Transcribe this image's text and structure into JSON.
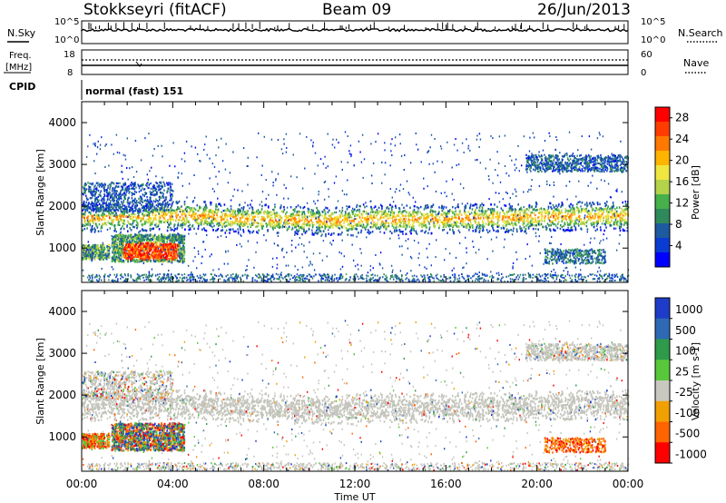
{
  "header": {
    "station": "Stokkseyri (fitACF)",
    "beam": "Beam 09",
    "date": "26/Jun/2013"
  },
  "side_labels": {
    "nsky": "N.Sky",
    "nsearch": "N.Search",
    "freq": "Freq.",
    "freq_unit": "[MHz]",
    "nave": "Nave",
    "cpid": "CPID"
  },
  "noise_panel": {
    "left_ticks": [
      "10^5",
      "10^0"
    ],
    "right_ticks": [
      "10^5",
      "10^0"
    ]
  },
  "freq_panel": {
    "left_ticks": [
      "18",
      "8"
    ],
    "right_ticks": [
      "60",
      "0"
    ]
  },
  "cpid_text": "normal (fast) 151",
  "chart_data": [
    {
      "type": "heatmap",
      "name": "power",
      "ylabel": "Slant Range [km]",
      "xlabel": "Time UT",
      "xlim_hours": [
        0,
        24
      ],
      "ylim": [
        180,
        4500
      ],
      "x_ticks": [
        "00:00",
        "04:00",
        "08:00",
        "12:00",
        "16:00",
        "20:00",
        "00:00"
      ],
      "y_ticks": [
        1000,
        2000,
        3000,
        4000
      ],
      "colorbar": {
        "label": "Power [dB]",
        "ticks": [
          4,
          8,
          12,
          16,
          20,
          24,
          28
        ],
        "range": [
          0,
          30
        ],
        "colors": [
          "#0000ff",
          "#0a3cd2",
          "#1e5aa0",
          "#2e8a5a",
          "#46b04a",
          "#b4d24a",
          "#f0e640",
          "#ffb400",
          "#ff7800",
          "#ff3c00",
          "#ff0000"
        ]
      }
    },
    {
      "type": "heatmap",
      "name": "velocity",
      "ylabel": "Slant Range [km]",
      "xlabel": "Time UT",
      "xlim_hours": [
        0,
        24
      ],
      "ylim": [
        180,
        4500
      ],
      "x_ticks": [
        "00:00",
        "04:00",
        "08:00",
        "12:00",
        "16:00",
        "20:00",
        "00:00"
      ],
      "y_ticks": [
        1000,
        2000,
        3000,
        4000
      ],
      "colorbar": {
        "label": "Velocity [m s-1]",
        "ticks": [
          "1000",
          "500",
          "100",
          "25",
          "-25",
          "-100",
          "-500",
          "-1000"
        ],
        "colors": [
          "#1e3cc8",
          "#2e6ab4",
          "#2e9a4a",
          "#58c83a",
          "#c8c8c0",
          "#f0a000",
          "#ff6400",
          "#ff0000"
        ]
      }
    }
  ],
  "time_axis_label": "Time UT",
  "colors": {
    "ground_scatter": "#c4c4bc",
    "frame": "#000000"
  }
}
